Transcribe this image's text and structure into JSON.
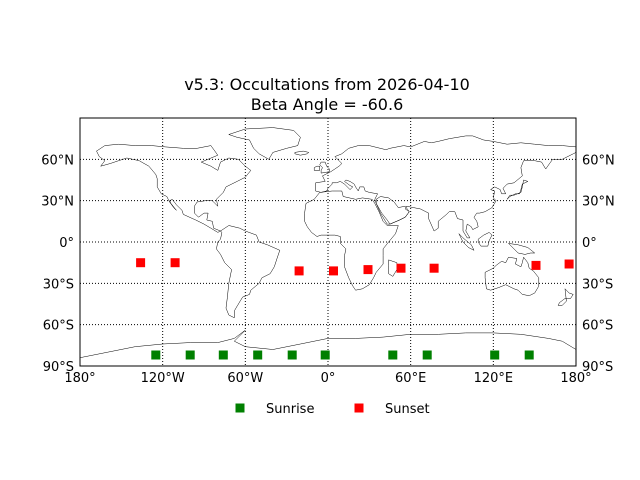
{
  "chart_data": {
    "type": "map",
    "title": "v5.3: Occultations from 2026-04-10",
    "subtitle": "Beta Angle = -60.6",
    "projection": "equirectangular",
    "xlim": [
      -180,
      180
    ],
    "ylim": [
      -90,
      90
    ],
    "grid": true,
    "lon_ticks": [
      {
        "value": -180,
        "label": "180°"
      },
      {
        "value": -120,
        "label": "120°W"
      },
      {
        "value": -60,
        "label": "60°W"
      },
      {
        "value": 0,
        "label": "0°"
      },
      {
        "value": 60,
        "label": "60°E"
      },
      {
        "value": 120,
        "label": "120°E"
      },
      {
        "value": 180,
        "label": "180°"
      }
    ],
    "lat_ticks": [
      {
        "value": 60,
        "label": "60°N"
      },
      {
        "value": 30,
        "label": "30°N"
      },
      {
        "value": 0,
        "label": "0°"
      },
      {
        "value": -30,
        "label": "30°S"
      },
      {
        "value": -60,
        "label": "60°S"
      },
      {
        "value": -90,
        "label": "90°S"
      }
    ],
    "legend_position": "bottom-center",
    "series": [
      {
        "name": "Sunrise",
        "color": "#008000",
        "marker": "square",
        "points": [
          {
            "lon": -125,
            "lat": -82
          },
          {
            "lon": -100,
            "lat": -82
          },
          {
            "lon": -76,
            "lat": -82
          },
          {
            "lon": -51,
            "lat": -82
          },
          {
            "lon": -26,
            "lat": -82
          },
          {
            "lon": -2,
            "lat": -82
          },
          {
            "lon": 47,
            "lat": -82
          },
          {
            "lon": 72,
            "lat": -82
          },
          {
            "lon": 121,
            "lat": -82
          },
          {
            "lon": 146,
            "lat": -82
          }
        ]
      },
      {
        "name": "Sunset",
        "color": "#ff0000",
        "marker": "square",
        "points": [
          {
            "lon": -136,
            "lat": -15
          },
          {
            "lon": -111,
            "lat": -15
          },
          {
            "lon": -21,
            "lat": -21
          },
          {
            "lon": 4,
            "lat": -21
          },
          {
            "lon": 29,
            "lat": -20
          },
          {
            "lon": 53,
            "lat": -19
          },
          {
            "lon": 77,
            "lat": -19
          },
          {
            "lon": 151,
            "lat": -17
          },
          {
            "lon": 175,
            "lat": -16
          }
        ]
      }
    ]
  }
}
